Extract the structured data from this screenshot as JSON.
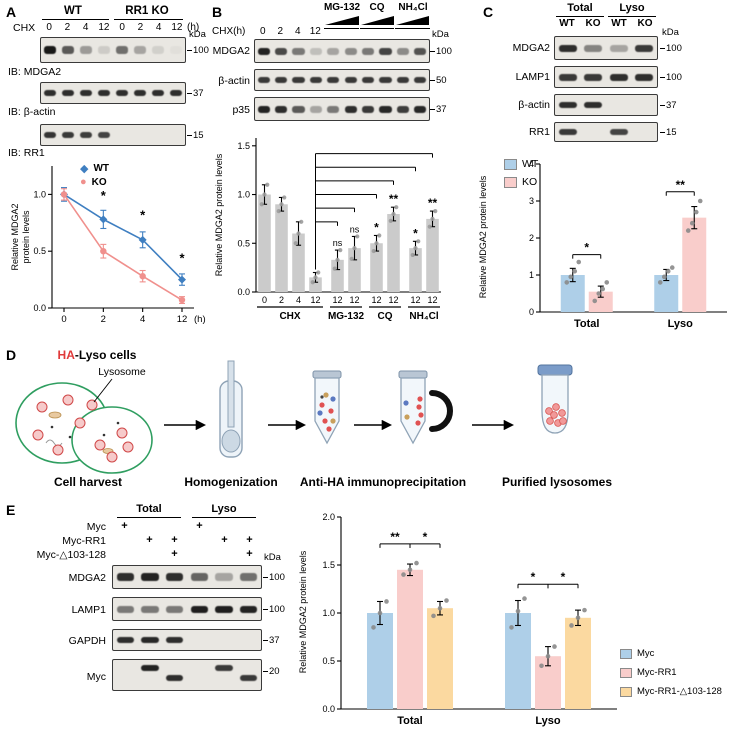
{
  "panel_a": {
    "label": "A",
    "blot": {
      "group_wt": "WT",
      "group_ko": "RR1 KO",
      "chx": "CHX",
      "lane_times": [
        "0",
        "2",
        "4",
        "12",
        "0",
        "2",
        "4",
        "12"
      ],
      "hours": "(h)",
      "kda": "kDa",
      "rows": [
        {
          "ib": "IB: MDGA2",
          "marker": "100",
          "bands": [
            0.95,
            0.65,
            0.35,
            0.12,
            0.55,
            0.3,
            0.1,
            0.03
          ]
        },
        {
          "ib": "IB: β-actin",
          "marker": "37",
          "bands": [
            0.85,
            0.85,
            0.85,
            0.85,
            0.85,
            0.85,
            0.85,
            0.85
          ]
        },
        {
          "ib": "IB: RR1",
          "marker": "15",
          "bands": [
            0.82,
            0.8,
            0.78,
            0.75,
            0,
            0,
            0,
            0
          ]
        }
      ]
    }
  },
  "panel_b": {
    "label": "B",
    "drugs": [
      "MG-132",
      "CQ",
      "NH₄Cl"
    ],
    "chx_label": "CHX(h)",
    "lane_times": [
      "0",
      "2",
      "4",
      "12"
    ],
    "kda": "kDa",
    "blot_rows": [
      {
        "label": "MDGA2",
        "marker": "100",
        "bands": [
          0.9,
          0.72,
          0.5,
          0.18,
          0.3,
          0.42,
          0.5,
          0.75,
          0.42,
          0.68
        ]
      },
      {
        "label": "β-actin",
        "marker": "50",
        "bands": [
          0.8,
          0.8,
          0.8,
          0.8,
          0.8,
          0.8,
          0.8,
          0.8,
          0.8,
          0.8
        ]
      },
      {
        "label": "p35",
        "marker": "37",
        "bands": [
          0.9,
          0.85,
          0.65,
          0.3,
          0.5,
          0.85,
          0.8,
          0.88,
          0.78,
          0.88
        ]
      }
    ]
  },
  "panel_c": {
    "label": "C",
    "header_total": "Total",
    "header_lyso": "Lyso",
    "lane_genotypes": [
      "WT",
      "KO",
      "WT",
      "KO"
    ],
    "kda": "kDa",
    "blot_rows": [
      {
        "label": "MDGA2",
        "marker": "100",
        "bands": [
          0.85,
          0.45,
          0.3,
          0.8
        ]
      },
      {
        "label": "LAMP1",
        "marker": "100",
        "bands": [
          0.8,
          0.8,
          0.85,
          0.85
        ]
      },
      {
        "label": "β-actin",
        "marker": "37",
        "bands": [
          0.85,
          0.85,
          0,
          0
        ]
      },
      {
        "label": "RR1",
        "marker": "15",
        "bands": [
          0.8,
          0,
          0.75,
          0
        ]
      }
    ]
  },
  "panel_d": {
    "label": "D",
    "ha": "HA",
    "cells_suffix": "-Lyso cells",
    "lysosome": "Lysosome",
    "steps": [
      "Cell harvest",
      "Homogenization",
      "Anti-HA immunoprecipitation",
      "Purified lysosomes"
    ]
  },
  "panel_e": {
    "label": "E",
    "header_total": "Total",
    "header_lyso": "Lyso",
    "plus_char": "+",
    "construct_rows": [
      {
        "label": "Myc",
        "plus": [
          1,
          0,
          0,
          1,
          0,
          0
        ]
      },
      {
        "label": "Myc-RR1",
        "plus": [
          0,
          1,
          1,
          0,
          1,
          1
        ]
      },
      {
        "label": "Myc-△103-128",
        "plus": [
          0,
          0,
          1,
          0,
          0,
          1
        ]
      }
    ],
    "kda": "kDa",
    "blot_rows": [
      {
        "label": "MDGA2",
        "marker": "100",
        "bands": [
          0.85,
          0.9,
          0.85,
          0.6,
          0.3,
          0.55
        ],
        "dy": [
          0,
          0,
          0,
          0,
          0,
          0
        ]
      },
      {
        "label": "LAMP1",
        "marker": "100",
        "bands": [
          0.5,
          0.5,
          0.5,
          0.92,
          0.92,
          0.9
        ],
        "dy": [
          0,
          0,
          0,
          0,
          0,
          0
        ]
      },
      {
        "label": "GAPDH",
        "marker": "37",
        "bands": [
          0.85,
          0.88,
          0.85,
          0,
          0,
          0
        ],
        "dy": [
          0,
          0,
          0,
          0,
          0,
          0
        ]
      },
      {
        "label": "Myc",
        "marker": "20",
        "bands": [
          0,
          0.9,
          0.85,
          0,
          0.8,
          0.8
        ],
        "dy": [
          0,
          -7,
          3,
          0,
          -7,
          3
        ]
      }
    ]
  },
  "chart_data": {
    "panel_a_decay": {
      "type": "line",
      "ylabel": "Relative MDGA2 protein levels",
      "xlabel": "(h)",
      "x_tick_labels": [
        "0",
        "2",
        "4",
        "12"
      ],
      "y_ticks": [
        0,
        0.5,
        1.0
      ],
      "y_tick_labels": [
        "0.0",
        "0.5",
        "1.0"
      ],
      "ylim": [
        0,
        1.25
      ],
      "series": [
        {
          "name": "WT",
          "glyph": "◆",
          "marker": "diamond",
          "color": "#3f7fc1",
          "values": [
            1.0,
            0.78,
            0.6,
            0.25
          ],
          "errors": [
            0.06,
            0.08,
            0.07,
            0.05
          ]
        },
        {
          "name": "KO",
          "glyph": "●",
          "marker": "circle",
          "color": "#f0908d",
          "values": [
            1.0,
            0.5,
            0.28,
            0.07
          ],
          "errors": [
            0.05,
            0.06,
            0.05,
            0.03
          ]
        }
      ],
      "sig": [
        {
          "xi": 1,
          "y": 0.95,
          "text": "*"
        },
        {
          "xi": 2,
          "y": 0.78,
          "text": "*"
        },
        {
          "xi": 3,
          "y": 0.4,
          "text": "*"
        }
      ]
    },
    "panel_b_bars": {
      "type": "bar",
      "ylabel": "Relative MDGA2 protein levels",
      "y_ticks": [
        0,
        0.5,
        1.0,
        1.5
      ],
      "y_tick_labels": [
        "0.0",
        "0.5",
        "1.0",
        "1.5"
      ],
      "ylim": [
        0,
        1.58
      ],
      "bar_color": "#cbcbcb",
      "dot_color": "#9b9b9b",
      "bar_labels": [
        "0",
        "2",
        "4",
        "12",
        "12",
        "12",
        "12",
        "12",
        "12",
        "12"
      ],
      "group_labels": [
        {
          "text": "CHX",
          "from": 0,
          "to": 3
        },
        {
          "text": "MG-132",
          "from": 4,
          "to": 5
        },
        {
          "text": "CQ",
          "from": 6,
          "to": 7
        },
        {
          "text": "NH₄Cl",
          "from": 8,
          "to": 9
        }
      ],
      "values": [
        1.0,
        0.9,
        0.6,
        0.15,
        0.33,
        0.45,
        0.5,
        0.8,
        0.45,
        0.75
      ],
      "errors": [
        0.1,
        0.07,
        0.12,
        0.05,
        0.1,
        0.12,
        0.08,
        0.07,
        0.07,
        0.08
      ],
      "dots": [
        [
          0.9,
          1.0,
          1.1
        ],
        [
          0.83,
          0.9,
          0.97
        ],
        [
          0.5,
          0.6,
          0.72
        ],
        [
          0.1,
          0.15,
          0.2
        ],
        [
          0.24,
          0.33,
          0.43
        ],
        [
          0.34,
          0.45,
          0.57
        ],
        [
          0.42,
          0.5,
          0.58
        ],
        [
          0.73,
          0.8,
          0.87
        ],
        [
          0.38,
          0.45,
          0.52
        ],
        [
          0.67,
          0.75,
          0.83
        ]
      ],
      "sig_above": [
        null,
        null,
        null,
        null,
        "ns",
        "ns",
        "*",
        "**",
        "*",
        "**"
      ],
      "brackets": [
        {
          "from": 3,
          "to": 4,
          "y": 0.72
        },
        {
          "from": 3,
          "to": 5,
          "y": 0.86
        },
        {
          "from": 3,
          "to": 6,
          "y": 1.0
        },
        {
          "from": 3,
          "to": 7,
          "y": 1.14
        },
        {
          "from": 3,
          "to": 8,
          "y": 1.28
        },
        {
          "from": 3,
          "to": 9,
          "y": 1.42
        }
      ]
    },
    "panel_c_bars": {
      "type": "grouped_bar",
      "ylabel": "Relative MDGA2 protein levels",
      "y_ticks": [
        0,
        1,
        2,
        3,
        4
      ],
      "y_tick_labels": [
        "0",
        "1",
        "2",
        "3",
        "4"
      ],
      "ylim": [
        0,
        4
      ],
      "dot_color": "#8a8a8a",
      "groups": [
        "Total",
        "Lyso"
      ],
      "series": [
        {
          "name": "WT",
          "color": "#aecfe8",
          "values": [
            1.0,
            1.0
          ],
          "errors": [
            0.18,
            0.15
          ],
          "dots": [
            [
              0.8,
              0.95,
              1.1,
              1.35
            ],
            [
              0.8,
              0.95,
              1.1,
              1.2
            ]
          ]
        },
        {
          "name": "KO",
          "color": "#f9cdcb",
          "values": [
            0.55,
            2.55
          ],
          "errors": [
            0.15,
            0.3
          ],
          "dots": [
            [
              0.3,
              0.5,
              0.62,
              0.8
            ],
            [
              2.2,
              2.4,
              2.7,
              3.0
            ]
          ]
        }
      ],
      "sig_pairs": [
        {
          "group": 0,
          "a": 0,
          "b": 1,
          "label": "*",
          "y": 1.55
        },
        {
          "group": 1,
          "a": 0,
          "b": 1,
          "label": "**",
          "y": 3.25
        }
      ]
    },
    "panel_e_bars": {
      "type": "grouped_bar",
      "ylabel": "Relative MDGA2 protein levels",
      "y_ticks": [
        0,
        0.5,
        1.0,
        1.5,
        2.0
      ],
      "y_tick_labels": [
        "0.0",
        "0.5",
        "1.0",
        "1.5",
        "2.0"
      ],
      "ylim": [
        0,
        2.0
      ],
      "dot_color": "#8a8a8a",
      "groups": [
        "Total",
        "Lyso"
      ],
      "series": [
        {
          "name": "Myc",
          "color": "#aecfe8",
          "values": [
            1.0,
            1.0
          ],
          "errors": [
            0.12,
            0.13
          ],
          "dots": [
            [
              0.85,
              1.0,
              1.12
            ],
            [
              0.85,
              1.02,
              1.15
            ]
          ]
        },
        {
          "name": "Myc-RR1",
          "color": "#f9cdcb",
          "values": [
            1.45,
            0.55
          ],
          "errors": [
            0.06,
            0.1
          ],
          "dots": [
            [
              1.4,
              1.45,
              1.52
            ],
            [
              0.45,
              0.55,
              0.65
            ]
          ]
        },
        {
          "name": "Myc-RR1-△103-128",
          "color": "#fbd9a0",
          "values": [
            1.05,
            0.95
          ],
          "errors": [
            0.07,
            0.08
          ],
          "dots": [
            [
              0.97,
              1.05,
              1.13
            ],
            [
              0.87,
              0.95,
              1.03
            ]
          ]
        }
      ],
      "sig_pairs": [
        {
          "group": 0,
          "a": 0,
          "b": 1,
          "label": "**",
          "y": 1.72
        },
        {
          "group": 0,
          "a": 1,
          "b": 2,
          "label": "*",
          "y": 1.72
        },
        {
          "group": 1,
          "a": 0,
          "b": 1,
          "label": "*",
          "y": 1.3
        },
        {
          "group": 1,
          "a": 1,
          "b": 2,
          "label": "*",
          "y": 1.3
        }
      ]
    }
  }
}
